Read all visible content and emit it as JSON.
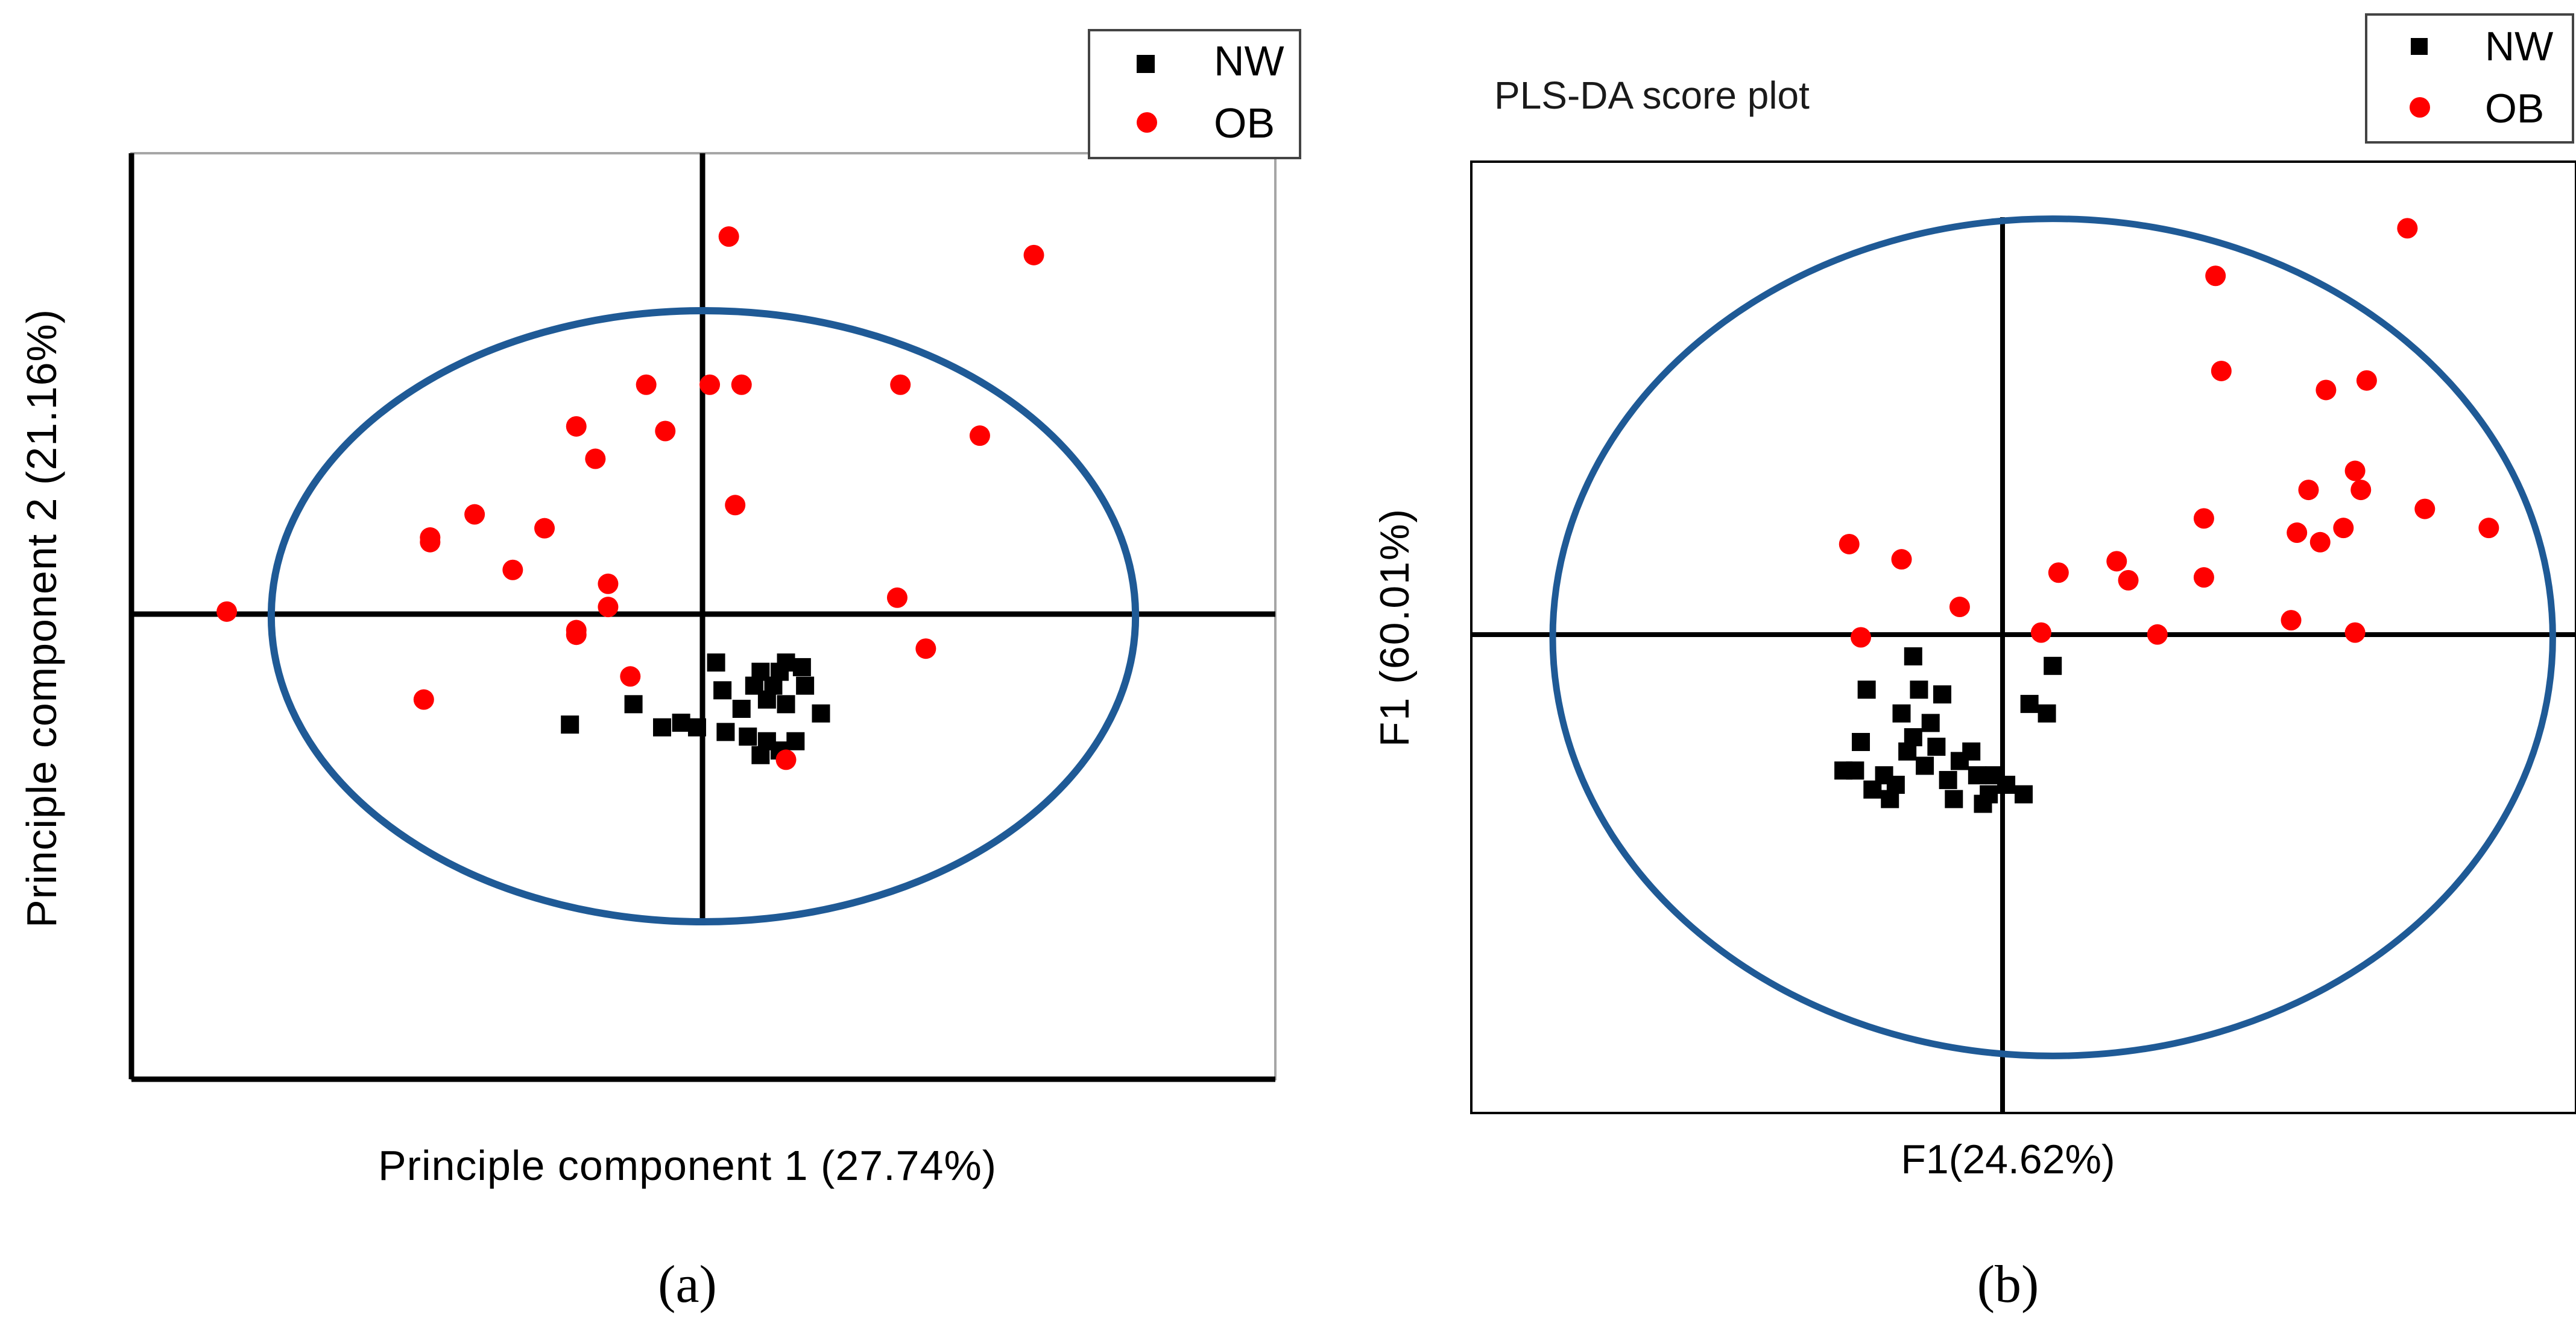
{
  "chart_data": [
    {
      "type": "scatter",
      "panel_label": "(a)",
      "title": "",
      "xlabel": "Principle component 1 (27.74%)",
      "ylabel": "Principle component 2 (21.16%)",
      "xlim": [
        -9,
        9
      ],
      "ylim": [
        -5,
        5
      ],
      "grid": false,
      "legend_position": "top-right",
      "ellipse": {
        "cx": 0,
        "cy": 0,
        "rx": 6.8,
        "ry": 3.3,
        "color": "#1f5a96"
      },
      "series": [
        {
          "name": "NW",
          "marker": "square",
          "color": "#000000",
          "points": [
            [
              -2.1,
              -1.17
            ],
            [
              -1.1,
              -0.95
            ],
            [
              -0.65,
              -1.2
            ],
            [
              -0.35,
              -1.15
            ],
            [
              -0.1,
              -1.2
            ],
            [
              0.2,
              -0.5
            ],
            [
              0.3,
              -0.8
            ],
            [
              0.6,
              -1.0
            ],
            [
              0.35,
              -1.25
            ],
            [
              0.7,
              -1.3
            ],
            [
              0.9,
              -1.5
            ],
            [
              1.0,
              -1.35
            ],
            [
              1.2,
              -1.45
            ],
            [
              1.45,
              -1.35
            ],
            [
              1.2,
              -0.6
            ],
            [
              0.9,
              -0.6
            ],
            [
              1.3,
              -0.5
            ],
            [
              1.55,
              -0.55
            ],
            [
              1.6,
              -0.75
            ],
            [
              1.85,
              -1.05
            ],
            [
              1.0,
              -0.9
            ],
            [
              1.1,
              -0.75
            ],
            [
              1.3,
              -0.95
            ],
            [
              0.8,
              -0.75
            ]
          ]
        },
        {
          "name": "OB",
          "marker": "circle",
          "color": "#ff0000",
          "points": [
            [
              -7.5,
              0.05
            ],
            [
              -4.4,
              -0.9
            ],
            [
              -4.3,
              0.85
            ],
            [
              -4.3,
              0.8
            ],
            [
              -3.6,
              1.1
            ],
            [
              -3.0,
              0.5
            ],
            [
              -2.5,
              0.95
            ],
            [
              -2.0,
              2.05
            ],
            [
              -1.7,
              1.7
            ],
            [
              -2.0,
              -0.15
            ],
            [
              -2.0,
              -0.2
            ],
            [
              -1.5,
              0.35
            ],
            [
              -1.5,
              0.1
            ],
            [
              -1.15,
              -0.65
            ],
            [
              -0.9,
              2.5
            ],
            [
              -0.6,
              2.0
            ],
            [
              0.1,
              2.5
            ],
            [
              0.4,
              4.1
            ],
            [
              0.5,
              1.2
            ],
            [
              0.6,
              2.5
            ],
            [
              3.1,
              2.5
            ],
            [
              3.05,
              0.2
            ],
            [
              3.5,
              -0.35
            ],
            [
              4.35,
              1.95
            ],
            [
              5.2,
              3.9
            ],
            [
              1.3,
              -1.55
            ]
          ]
        }
      ]
    },
    {
      "type": "scatter",
      "panel_label": "(b)",
      "title": "PLS-DA score plot",
      "xlabel": "F1(24.62%)",
      "ylabel": "F1 (60.01%)",
      "xlim": [
        -5,
        4.5
      ],
      "ylim": [
        -5,
        5
      ],
      "grid": false,
      "legend_position": "top-right",
      "ellipse": {
        "cx": 0,
        "cy": 0,
        "rx": 4.3,
        "ry": 4.4,
        "color": "#1f5a96"
      },
      "series": [
        {
          "name": "NW",
          "marker": "square",
          "color": "#000000",
          "points": [
            [
              -1.8,
              -1.4
            ],
            [
              -1.7,
              -1.4
            ],
            [
              -1.65,
              -1.1
            ],
            [
              -1.6,
              -0.55
            ],
            [
              -1.55,
              -1.6
            ],
            [
              -1.45,
              -1.45
            ],
            [
              -1.4,
              -1.7
            ],
            [
              -1.35,
              -1.55
            ],
            [
              -1.3,
              -0.8
            ],
            [
              -1.25,
              -1.2
            ],
            [
              -1.2,
              -1.05
            ],
            [
              -1.2,
              -0.2
            ],
            [
              -1.15,
              -0.55
            ],
            [
              -1.1,
              -1.35
            ],
            [
              -1.05,
              -0.9
            ],
            [
              -1.0,
              -1.15
            ],
            [
              -0.95,
              -0.6
            ],
            [
              -0.9,
              -1.5
            ],
            [
              -0.85,
              -1.7
            ],
            [
              -0.8,
              -1.3
            ],
            [
              -0.7,
              -1.2
            ],
            [
              -0.65,
              -1.45
            ],
            [
              -0.6,
              -1.75
            ],
            [
              -0.55,
              -1.65
            ],
            [
              -0.5,
              -1.45
            ],
            [
              -0.4,
              -1.55
            ],
            [
              -0.25,
              -1.65
            ],
            [
              -0.2,
              -0.7
            ],
            [
              -0.05,
              -0.8
            ],
            [
              0.0,
              -0.3
            ]
          ]
        },
        {
          "name": "OB",
          "marker": "circle",
          "color": "#ff0000",
          "points": [
            [
              -1.75,
              0.98
            ],
            [
              -1.65,
              0.0
            ],
            [
              -1.3,
              0.82
            ],
            [
              -0.8,
              0.32
            ],
            [
              -0.1,
              0.05
            ],
            [
              0.05,
              0.68
            ],
            [
              0.55,
              0.8
            ],
            [
              0.65,
              0.6
            ],
            [
              0.9,
              0.03
            ],
            [
              1.3,
              0.63
            ],
            [
              1.3,
              1.25
            ],
            [
              1.4,
              3.8
            ],
            [
              1.45,
              2.8
            ],
            [
              2.05,
              0.18
            ],
            [
              2.1,
              1.1
            ],
            [
              2.2,
              1.55
            ],
            [
              2.3,
              1.0
            ],
            [
              2.35,
              2.6
            ],
            [
              2.5,
              1.15
            ],
            [
              2.6,
              0.05
            ],
            [
              2.6,
              1.75
            ],
            [
              2.65,
              1.55
            ],
            [
              2.7,
              2.7
            ],
            [
              3.2,
              1.35
            ],
            [
              3.05,
              4.3
            ],
            [
              3.75,
              1.15
            ]
          ]
        }
      ]
    }
  ]
}
